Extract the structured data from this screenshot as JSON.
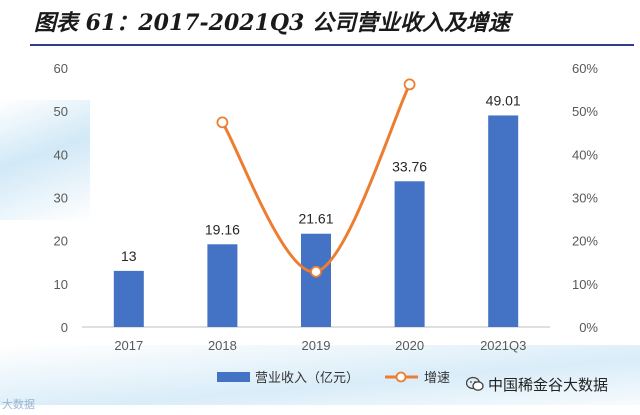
{
  "page": {
    "title": "图表 61：2017-2021Q3 公司营业收入及增速",
    "source": "中国稀金谷大数据",
    "watermark": "大数据"
  },
  "colors": {
    "bar": "#4472c4",
    "line": "#ed7d31",
    "marker_fill": "#ffffff",
    "axis_text": "#595959",
    "axis_line": "#bfbfbf",
    "title_rule": "#2f3f8a"
  },
  "chart_data": {
    "type": "bar",
    "categories": [
      "2017",
      "2018",
      "2019",
      "2020",
      "2021Q3"
    ],
    "series": [
      {
        "name": "营业收入（亿元）",
        "type": "bar",
        "axis": "left",
        "values": [
          13,
          19.16,
          21.61,
          33.76,
          49.01
        ],
        "labels": [
          "13",
          "19.16",
          "21.61",
          "33.76",
          "49.01"
        ]
      },
      {
        "name": "增速",
        "type": "line",
        "axis": "right",
        "smooth": true,
        "marker": "circle-open",
        "values": [
          null,
          0.474,
          0.128,
          0.562,
          null
        ]
      }
    ],
    "y_left": {
      "ylim": [
        0,
        60
      ],
      "ticks": [
        "0",
        "10",
        "20",
        "30",
        "40",
        "50",
        "60"
      ]
    },
    "y_right": {
      "ylim": [
        0,
        0.6
      ],
      "ticks": [
        "0%",
        "10%",
        "20%",
        "30%",
        "40%",
        "50%",
        "60%"
      ]
    },
    "grid": false,
    "legend_position": "bottom"
  }
}
